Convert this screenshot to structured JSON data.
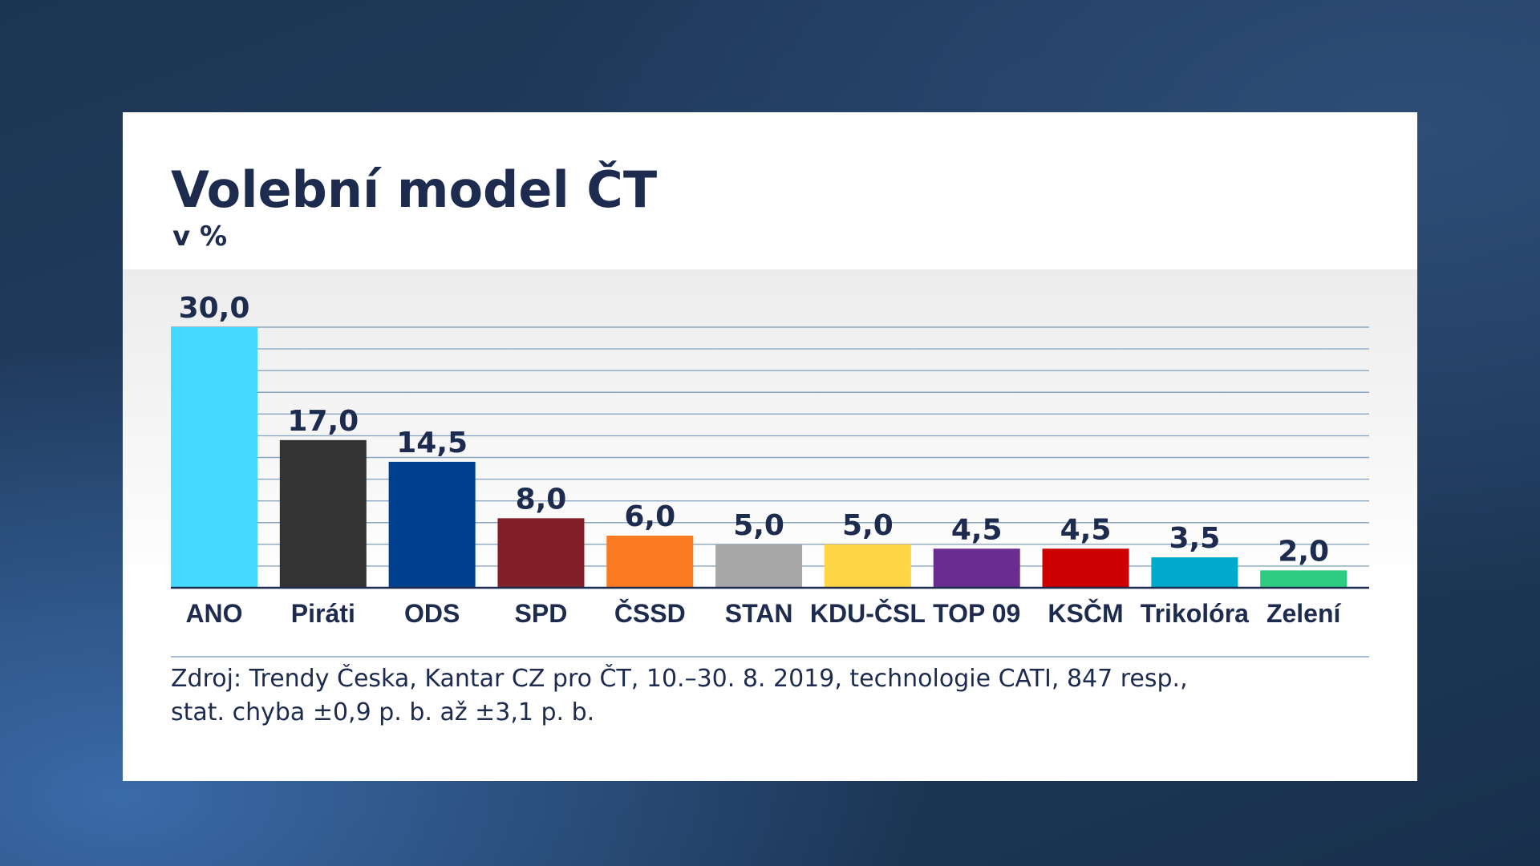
{
  "chart_data": {
    "type": "bar",
    "title": "Volební model ČT",
    "subtitle": "v %",
    "categories": [
      "ANO",
      "Piráti",
      "ODS",
      "SPD",
      "ČSSD",
      "STAN",
      "KDU-ČSL",
      "TOP 09",
      "KSČM",
      "Trikolóra",
      "Zelení"
    ],
    "values": [
      30.0,
      17.0,
      14.5,
      8.0,
      6.0,
      5.0,
      5.0,
      4.5,
      4.5,
      3.5,
      2.0
    ],
    "value_labels": [
      "30,0",
      "17,0",
      "14,5",
      "8,0",
      "6,0",
      "5,0",
      "5,0",
      "4,5",
      "4,5",
      "3,5",
      "2,0"
    ],
    "colors": [
      "#45d9ff",
      "#333333",
      "#00418f",
      "#831f27",
      "#f97a1f",
      "#a7a7a7",
      "#ffd646",
      "#6a2c91",
      "#cc0000",
      "#00aacc",
      "#2ecc80"
    ],
    "ylim": [
      0,
      30
    ],
    "grid": true,
    "legend": false
  },
  "source": {
    "line1": "Zdroj: Trendy Česka, Kantar CZ pro ČT,  10.–30. 8. 2019, technologie CATI, 847 resp.,",
    "line2": "stat. chyba ±0,9 p. b. až ±3,1 p. b."
  }
}
